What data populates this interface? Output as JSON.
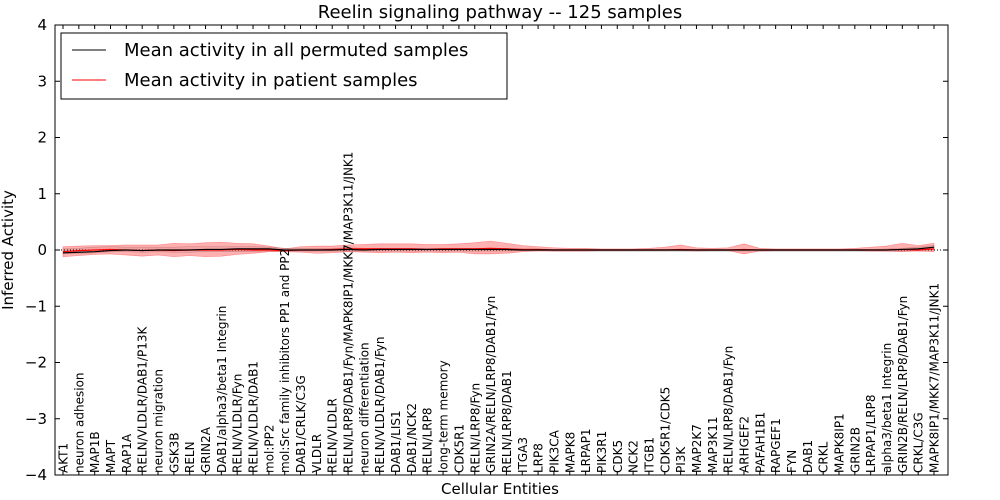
{
  "chart_data": {
    "type": "line",
    "title": "Reelin signaling pathway -- 125 samples",
    "xlabel": "Cellular Entities",
    "ylabel": "Inferred Activity",
    "ylim": [
      -4,
      4
    ],
    "yticks": [
      -4,
      -3,
      -2,
      -1,
      0,
      1,
      2,
      3,
      4
    ],
    "ytick_labels": [
      "−4",
      "−3",
      "−2",
      "−1",
      "0",
      "1",
      "2",
      "3",
      "4"
    ],
    "legend_position": "top-left",
    "categories": [
      "AKT1",
      "neuron adhesion",
      "MAP1B",
      "MAPT",
      "RAP1A",
      "RELN/VLDLR/DAB1/P13K",
      "neuron migration",
      "GSK3B",
      "RELN",
      "GRIN2A",
      "DAB1/alpha3/beta1 Integrin",
      "RELN/VLDLR/Fyn",
      "RELN/VLDLR/DAB1",
      "mol:PP2",
      "mol:Src family inhibitors PP1 and PP2",
      "DAB1/CRLK/C3G",
      "VLDLR",
      "RELN/VLDLR",
      "RELN/LRP8/DAB1/Fyn/MAPK8IP1/MKK7/MAP3K11/JNK1",
      "neuron differentiation",
      "RELN/VLDLR/DAB1/Fyn",
      "DAB1/LIS1",
      "DAB1/NCK2",
      "RELN/LRP8",
      "long-term memory",
      "CDK5R1",
      "RELN/LRP8/Fyn",
      "GRIN2A/RELN/LRP8/DAB1/Fyn",
      "RELN/LRP8/DAB1",
      "ITGA3",
      "LRP8",
      "PIK3CA",
      "MAPK8",
      "LRPAP1",
      "PIK3R1",
      "CDK5",
      "NCK2",
      "ITGB1",
      "CDK5R1/CDK5",
      "PI3K",
      "MAP2K7",
      "MAP3K11",
      "RELN/LRP8/DAB1/Fyn",
      "ARHGEF2",
      "PAFAH1B1",
      "RAPGEF1",
      "FYN",
      "DAB1",
      "CRKL",
      "MAPK8IP1",
      "GRIN2B",
      "LRPAP1/LRP8",
      "alpha3/beta1 Integrin",
      "GRIN2B/RELN/LRP8/DAB1/Fyn",
      "CRKL/C3G",
      "MAPK8IP1/MKK7/MAP3K11/JNK1"
    ],
    "series": [
      {
        "name": "Mean activity in all permuted samples",
        "color": "#000000",
        "values": [
          -0.05,
          -0.04,
          -0.03,
          -0.01,
          0.0,
          -0.01,
          0.0,
          0.0,
          0.0,
          0.01,
          0.01,
          0.02,
          0.02,
          0.02,
          0.0,
          0.0,
          0.0,
          0.0,
          0.01,
          0.0,
          0.01,
          0.01,
          0.01,
          0.01,
          0.01,
          0.01,
          0.01,
          0.01,
          0.01,
          0.0,
          0.0,
          0.0,
          0.0,
          0.0,
          0.0,
          0.0,
          0.0,
          0.0,
          0.0,
          0.0,
          0.0,
          0.0,
          0.0,
          0.0,
          0.0,
          0.0,
          0.0,
          0.0,
          0.0,
          0.0,
          0.0,
          0.0,
          0.0,
          0.01,
          0.02,
          0.05
        ],
        "band_low": [
          -0.07,
          -0.06,
          -0.05,
          -0.03,
          -0.03,
          -0.04,
          -0.03,
          -0.04,
          -0.04,
          -0.03,
          -0.03,
          -0.03,
          -0.03,
          -0.02,
          -0.02,
          -0.02,
          -0.02,
          -0.02,
          -0.02,
          -0.02,
          -0.02,
          -0.02,
          -0.02,
          -0.02,
          -0.02,
          -0.02,
          -0.02,
          -0.02,
          -0.02,
          -0.01,
          -0.01,
          -0.02,
          -0.02,
          -0.02,
          -0.02,
          -0.02,
          -0.02,
          -0.02,
          -0.02,
          -0.02,
          -0.02,
          -0.02,
          -0.02,
          -0.02,
          -0.02,
          -0.02,
          -0.02,
          -0.02,
          -0.02,
          -0.02,
          -0.02,
          -0.02,
          -0.02,
          -0.02,
          -0.01,
          0.01
        ],
        "band_high": [
          0.02,
          0.03,
          0.05,
          0.06,
          0.05,
          0.05,
          0.05,
          0.05,
          0.06,
          0.06,
          0.06,
          0.06,
          0.06,
          0.05,
          0.03,
          0.03,
          0.03,
          0.03,
          0.04,
          0.03,
          0.03,
          0.03,
          0.03,
          0.03,
          0.03,
          0.03,
          0.03,
          0.03,
          0.03,
          0.02,
          0.02,
          0.01,
          0.01,
          0.01,
          0.01,
          0.01,
          0.01,
          0.01,
          0.01,
          0.01,
          0.01,
          0.01,
          0.01,
          0.01,
          0.01,
          0.01,
          0.01,
          0.01,
          0.01,
          0.01,
          0.01,
          0.01,
          0.02,
          0.03,
          0.05,
          0.08
        ]
      },
      {
        "name": "Mean activity in patient samples",
        "color": "#ff0000",
        "values": [
          -0.03,
          -0.01,
          0.0,
          0.01,
          0.0,
          -0.01,
          0.0,
          -0.01,
          0.0,
          0.0,
          0.0,
          0.01,
          0.0,
          0.0,
          -0.01,
          0.0,
          0.0,
          0.01,
          0.02,
          0.02,
          0.02,
          0.02,
          0.02,
          0.01,
          0.02,
          0.02,
          0.02,
          0.03,
          0.02,
          0.01,
          0.01,
          0.0,
          0.0,
          0.0,
          0.0,
          0.0,
          0.0,
          0.0,
          0.0,
          0.01,
          0.0,
          0.0,
          0.0,
          0.01,
          0.0,
          0.0,
          0.0,
          0.0,
          0.0,
          0.0,
          0.0,
          0.0,
          0.0,
          0.01,
          0.0,
          0.02
        ],
        "band_low": [
          -0.12,
          -0.1,
          -0.08,
          -0.07,
          -0.09,
          -0.11,
          -0.09,
          -0.12,
          -0.1,
          -0.12,
          -0.11,
          -0.08,
          -0.06,
          -0.03,
          -0.03,
          -0.04,
          -0.06,
          -0.05,
          -0.03,
          -0.04,
          -0.05,
          -0.04,
          -0.05,
          -0.04,
          -0.05,
          -0.04,
          -0.07,
          -0.07,
          -0.06,
          -0.03,
          -0.02,
          -0.02,
          -0.02,
          -0.02,
          -0.01,
          -0.01,
          -0.01,
          -0.01,
          -0.01,
          -0.01,
          -0.02,
          -0.01,
          -0.01,
          -0.07,
          -0.02,
          -0.01,
          -0.01,
          -0.01,
          -0.01,
          -0.01,
          -0.01,
          -0.02,
          -0.02,
          -0.03,
          -0.02,
          -0.03
        ],
        "band_high": [
          0.06,
          0.07,
          0.08,
          0.08,
          0.09,
          0.09,
          0.09,
          0.12,
          0.11,
          0.13,
          0.14,
          0.12,
          0.11,
          0.07,
          0.02,
          0.06,
          0.07,
          0.07,
          0.09,
          0.1,
          0.11,
          0.11,
          0.11,
          0.1,
          0.1,
          0.11,
          0.13,
          0.16,
          0.12,
          0.08,
          0.06,
          0.04,
          0.03,
          0.03,
          0.02,
          0.02,
          0.02,
          0.03,
          0.05,
          0.09,
          0.04,
          0.03,
          0.04,
          0.11,
          0.03,
          0.02,
          0.02,
          0.02,
          0.02,
          0.02,
          0.03,
          0.05,
          0.07,
          0.12,
          0.08,
          0.12
        ]
      }
    ]
  }
}
